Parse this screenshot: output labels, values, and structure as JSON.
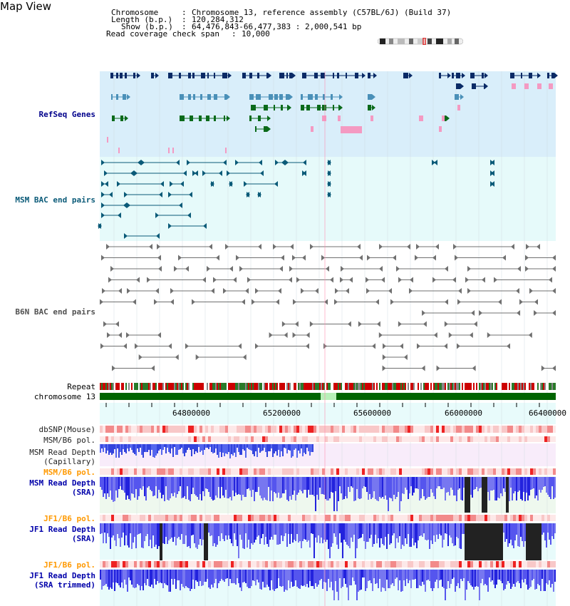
{
  "page": {
    "title": "Map View"
  },
  "info": {
    "chromosome_label": "Chromosome",
    "chromosome_value": "Chromosome 13, reference assembly (C57BL/6J) (Build 37)",
    "length_label": "Length (b.p.)",
    "length_value": "120,284,312",
    "show_label": "Show (b.p.)",
    "show_value": "64,476,843-66,477,383 : 2,000,541 bp",
    "coverage_label": "Read coverage check span",
    "coverage_value": "10,000"
  },
  "tracks": {
    "refseq": "RefSeq Genes",
    "msm_bac": "MSM BAC end pairs",
    "b6n_bac": "B6N BAC end pairs",
    "repeat": "Repeat",
    "chromosome": "chromosome 13",
    "dbsnp": "dbSNP(Mouse)",
    "msm_b6_pol_1": "MSM/B6 pol.",
    "msm_read_depth_cap_1": "MSM Read Depth",
    "msm_read_depth_cap_2": "(Capillary)",
    "msm_b6_pol_2": "MSM/B6 pol.",
    "msm_read_depth_sra_1": "MSM Read Depth",
    "msm_read_depth_sra_2": "(SRA)",
    "jf1_b6_pol_1": "JF1/B6 pol.",
    "jf1_read_depth_sra_1": "JF1 Read Depth",
    "jf1_read_depth_sra_2": "(SRA)",
    "jf1_b6_pol_2": "JF1/B6 pol.",
    "jf1_read_depth_trim_1": "JF1 Read Depth",
    "jf1_read_depth_trim_2": "(SRA trimmed)"
  },
  "axis": {
    "ticks": [
      "64800000",
      "65200000",
      "65600000",
      "66000000",
      "66400000"
    ]
  },
  "colors": {
    "refseq_bg": "#d9eefa",
    "bac_bg": "#e6fafa",
    "gene_navy": "#0a2a66",
    "gene_steel": "#4a90b8",
    "gene_green": "#0a6a1a",
    "gene_pink": "#f49ac2",
    "bac_teal": "#0a5a78",
    "bac_gray": "#707070",
    "chromosome_green": "#006400",
    "depth_blue": "#3333ee",
    "depth_dark": "#222222",
    "pol_red": "#ff4444"
  },
  "icons": {
    "ideogram": "chromosome-ideogram-icon"
  }
}
